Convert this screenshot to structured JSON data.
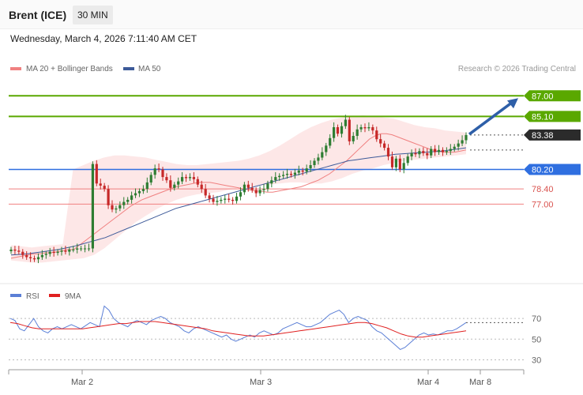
{
  "header": {
    "instrument": "Brent (ICE)",
    "timeframe": "30 MIN",
    "datetime": "Wednesday, March 4, 2026 7:11:40 AM CET"
  },
  "legend": {
    "items": [
      "MA 20 + Bollinger Bands",
      "MA 50"
    ],
    "credit": "Research © 2026 Trading Central"
  },
  "rsi_legend": {
    "items": [
      "RSI",
      "9MA"
    ]
  },
  "colors": {
    "candle_up": "#2e7d32",
    "candle_down": "#c62828",
    "resistance": "#5aa800",
    "support": "#2f6fe0",
    "stop": "#f08080",
    "arrow": "#2e5fa8",
    "ma50": "#3d5a99",
    "ma20": "#f08080"
  },
  "chart_data": [
    {
      "type": "candlestick",
      "title": "Brent (ICE)",
      "timeframe": "30 MIN",
      "x_ticks": [
        "Mar 2",
        "Mar 3",
        "Mar 4",
        "Mar 8"
      ],
      "ylim": [
        69.0,
        88.7
      ],
      "levels": [
        {
          "value": 87.0,
          "label": "87.00",
          "kind": "target"
        },
        {
          "value": 85.1,
          "label": "85.10",
          "kind": "target"
        },
        {
          "value": 83.38,
          "label": "83.38",
          "kind": "last"
        },
        {
          "value": 80.2,
          "label": "80.20",
          "kind": "pivot"
        },
        {
          "value": 78.4,
          "label": "78.40",
          "kind": "support"
        },
        {
          "value": 77.0,
          "label": "77.00",
          "kind": "support"
        }
      ],
      "closes": [
        72.8,
        72.7,
        72.6,
        72.3,
        72.1,
        72.0,
        71.9,
        72.1,
        72.3,
        72.4,
        72.6,
        72.5,
        72.6,
        72.7,
        72.6,
        72.8,
        72.8,
        72.9,
        72.9,
        72.9,
        72.9,
        80.7,
        78.9,
        78.7,
        78.4,
        76.9,
        76.5,
        76.6,
        76.9,
        77.2,
        77.4,
        77.8,
        78.0,
        78.2,
        78.4,
        79.0,
        79.7,
        80.3,
        80.2,
        79.5,
        79.2,
        78.5,
        78.8,
        79.1,
        79.5,
        79.4,
        79.5,
        79.3,
        78.8,
        78.4,
        77.8,
        77.5,
        77.2,
        77.3,
        77.4,
        77.5,
        77.4,
        77.3,
        77.7,
        78.1,
        78.8,
        78.5,
        78.3,
        78.0,
        78.3,
        78.4,
        78.9,
        79.2,
        79.5,
        79.6,
        79.7,
        79.8,
        79.7,
        79.9,
        80.1,
        80.0,
        80.3,
        80.6,
        81.0,
        81.3,
        81.8,
        82.4,
        83.1,
        84.1,
        83.5,
        84.2,
        84.8,
        82.8,
        83.3,
        83.9,
        84.1,
        84.0,
        84.1,
        83.8,
        83.0,
        82.6,
        82.2,
        81.4,
        80.4,
        81.2,
        80.2,
        80.8,
        81.4,
        81.7,
        81.6,
        81.9,
        81.7,
        81.5,
        82.1,
        81.8,
        82.0,
        81.8,
        81.9,
        82.1,
        82.3,
        82.6,
        82.9,
        83.38
      ],
      "ma20": [
        72.0,
        72.1,
        72.2,
        72.3,
        72.4,
        72.4,
        72.5,
        72.5,
        72.6,
        72.7,
        72.8,
        72.8,
        73.2,
        73.6,
        74.0,
        74.4,
        74.8,
        75.2,
        75.6,
        76.0,
        76.4,
        76.8,
        77.1,
        77.4,
        77.6,
        77.8,
        78.0,
        78.2,
        78.4,
        78.6,
        78.7,
        78.8,
        78.9,
        79.0,
        79.0,
        79.0,
        78.9,
        78.8,
        78.7,
        78.6,
        78.5,
        78.4,
        78.3,
        78.2,
        78.2,
        78.1,
        78.1,
        78.2,
        78.3,
        78.4,
        78.5,
        78.6,
        78.8,
        79.0,
        79.2,
        79.5,
        79.8,
        80.2,
        80.6,
        81.0,
        81.5,
        82.0,
        82.5,
        83.0,
        83.3,
        83.5,
        83.5,
        83.4,
        83.2,
        83.0,
        82.8,
        82.6,
        82.4,
        82.2,
        82.0,
        81.9,
        81.8,
        81.8,
        81.8,
        81.9,
        82.0
      ],
      "ma50": [
        72.3,
        72.35,
        72.4,
        72.5,
        72.6,
        72.7,
        72.8,
        72.95,
        73.1,
        73.3,
        73.5,
        73.7,
        73.9,
        74.2,
        74.5,
        74.8,
        75.1,
        75.4,
        75.7,
        76.0,
        76.3,
        76.6,
        76.8,
        77.0,
        77.2,
        77.4,
        77.6,
        77.8,
        78.0,
        78.2,
        78.4,
        78.6,
        78.8,
        79.0,
        79.2,
        79.4,
        79.6,
        79.8,
        80.0,
        80.2,
        80.4,
        80.6,
        80.8,
        81.0,
        81.1,
        81.2,
        81.3,
        81.4,
        81.5,
        81.6,
        81.65,
        81.7,
        81.75,
        81.8,
        81.85,
        81.9,
        82.0,
        82.1,
        82.2
      ],
      "bb_upper": [
        73.2,
        73.1,
        73.0,
        73.1,
        73.2,
        73.3,
        80.2,
        80.6,
        81.0,
        81.3,
        81.5,
        81.5,
        81.4,
        81.3,
        81.1,
        80.9,
        80.7,
        80.6,
        80.6,
        80.7,
        80.8,
        80.9,
        81.0,
        81.2,
        81.5,
        81.9,
        82.4,
        83.0,
        83.6,
        84.1,
        84.5,
        84.8,
        85.0,
        85.1,
        85.2,
        85.1,
        85.0,
        84.9,
        84.6,
        84.3,
        84.1,
        84.0,
        83.8,
        83.7,
        83.6
      ],
      "bb_lower": [
        71.8,
        71.7,
        71.6,
        71.6,
        71.7,
        71.8,
        71.9,
        72.0,
        72.3,
        72.9,
        73.7,
        74.5,
        75.3,
        75.9,
        76.5,
        77.0,
        77.4,
        77.7,
        77.9,
        78.0,
        78.1,
        78.3,
        78.5,
        78.6,
        78.7,
        78.8,
        78.9,
        79.0,
        79.0,
        78.9,
        78.9,
        79.1,
        79.4,
        79.8,
        80.1,
        80.3,
        80.6,
        80.8,
        81.0,
        81.1,
        81.2,
        81.3,
        81.4,
        81.5,
        81.6
      ],
      "projection": {
        "from": 83.38,
        "to": 87.0
      }
    },
    {
      "type": "line",
      "title": "RSI",
      "series": [
        {
          "name": "RSI",
          "values": [
            70,
            68,
            60,
            58,
            64,
            70,
            62,
            58,
            56,
            60,
            62,
            60,
            62,
            64,
            62,
            60,
            63,
            66,
            64,
            62,
            82,
            78,
            70,
            66,
            64,
            62,
            66,
            68,
            66,
            64,
            68,
            70,
            72,
            70,
            66,
            64,
            62,
            58,
            56,
            60,
            62,
            60,
            58,
            56,
            54,
            52,
            54,
            50,
            48,
            50,
            52,
            54,
            52,
            56,
            58,
            56,
            54,
            56,
            60,
            62,
            64,
            66,
            64,
            62,
            62,
            64,
            66,
            70,
            74,
            76,
            78,
            74,
            66,
            70,
            72,
            70,
            68,
            62,
            58,
            56,
            52,
            48,
            44,
            40,
            42,
            46,
            50,
            54,
            56,
            54,
            55,
            54,
            56,
            58,
            58,
            60,
            63,
            66
          ]
        },
        {
          "name": "9MA",
          "values": [
            66,
            65,
            63,
            61,
            60,
            60,
            60,
            60,
            60,
            60,
            60,
            61,
            62,
            63,
            64,
            65,
            65,
            66,
            67,
            67,
            67,
            66,
            65,
            64,
            63,
            62,
            61,
            60,
            58,
            57,
            56,
            55,
            54,
            53,
            53,
            53,
            54,
            55,
            56,
            57,
            58,
            59,
            60,
            61,
            62,
            63,
            64,
            65,
            66,
            66,
            65,
            63,
            61,
            58,
            55,
            53,
            52,
            52,
            53,
            54,
            55,
            56,
            57,
            58
          ]
        }
      ],
      "ylim": [
        25,
        80
      ],
      "y_ticks": [
        "70",
        "50",
        "30"
      ],
      "levels": [
        70,
        50,
        30
      ]
    }
  ]
}
